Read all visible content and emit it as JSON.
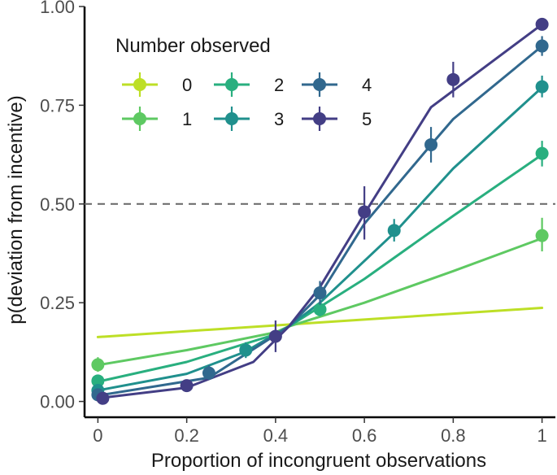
{
  "chart_data": {
    "type": "line",
    "title": "",
    "xlabel": "Proportion of incongruent observations",
    "ylabel": "p(deviation from incentive)",
    "xlim": [
      -0.03,
      1.03
    ],
    "ylim": [
      -0.04,
      1.0
    ],
    "x_ticks": [
      0,
      0.2,
      0.4,
      0.6,
      0.8,
      1
    ],
    "x_tick_labels": [
      "0",
      "0.2",
      "0.4",
      "0.6",
      "0.8",
      "1"
    ],
    "y_ticks": [
      0,
      0.25,
      0.5,
      0.75,
      1.0
    ],
    "y_tick_labels": [
      "0.00",
      "0.25",
      "0.50",
      "0.75",
      "1.00"
    ],
    "reference_line": {
      "y": 0.5,
      "style": "dashed",
      "color": "#666666"
    },
    "grid": false,
    "legend": {
      "title": "Number observed",
      "placement": "top-left",
      "columns": 3
    },
    "series": [
      {
        "name": "0",
        "color": "#bddf26",
        "curve": {
          "x": [
            0,
            1
          ],
          "y": [
            0.163,
            0.237
          ]
        },
        "points": []
      },
      {
        "name": "1",
        "color": "#5ec962",
        "curve": {
          "x": [
            0,
            0.2,
            0.4,
            0.43,
            0.6,
            0.8,
            1
          ],
          "y": [
            0.092,
            0.13,
            0.175,
            0.19,
            0.25,
            0.33,
            0.413
          ]
        },
        "points": [
          {
            "x": 0,
            "y": 0.093,
            "lo": 0.075,
            "hi": 0.112
          },
          {
            "x": 1,
            "y": 0.42,
            "lo": 0.38,
            "hi": 0.465
          }
        ]
      },
      {
        "name": "2",
        "color": "#29af7f",
        "curve": {
          "x": [
            0,
            0.2,
            0.4,
            0.43,
            0.6,
            0.8,
            1
          ],
          "y": [
            0.05,
            0.1,
            0.17,
            0.19,
            0.31,
            0.47,
            0.625
          ]
        },
        "points": [
          {
            "x": 0,
            "y": 0.052,
            "lo": 0.038,
            "hi": 0.068
          },
          {
            "x": 0.5,
            "y": 0.233,
            "lo": 0.215,
            "hi": 0.252
          },
          {
            "x": 1,
            "y": 0.628,
            "lo": 0.595,
            "hi": 0.66
          }
        ]
      },
      {
        "name": "3",
        "color": "#20908d",
        "curve": {
          "x": [
            0,
            0.2,
            0.33,
            0.43,
            0.5,
            0.67,
            0.8,
            1
          ],
          "y": [
            0.028,
            0.07,
            0.125,
            0.19,
            0.25,
            0.43,
            0.59,
            0.795
          ]
        },
        "points": [
          {
            "x": 0,
            "y": 0.028,
            "lo": 0.018,
            "hi": 0.04
          },
          {
            "x": 0.333,
            "y": 0.13,
            "lo": 0.11,
            "hi": 0.15
          },
          {
            "x": 0.667,
            "y": 0.433,
            "lo": 0.405,
            "hi": 0.462
          },
          {
            "x": 1,
            "y": 0.797,
            "lo": 0.77,
            "hi": 0.825
          }
        ]
      },
      {
        "name": "4",
        "color": "#31688e",
        "curve": {
          "x": [
            0,
            0.25,
            0.43,
            0.5,
            0.6,
            0.75,
            0.8,
            1
          ],
          "y": [
            0.015,
            0.06,
            0.19,
            0.27,
            0.45,
            0.65,
            0.715,
            0.9
          ]
        },
        "points": [
          {
            "x": 0,
            "y": 0.017,
            "lo": 0.01,
            "hi": 0.026
          },
          {
            "x": 0.25,
            "y": 0.072,
            "lo": 0.055,
            "hi": 0.092
          },
          {
            "x": 0.5,
            "y": 0.275,
            "lo": 0.245,
            "hi": 0.305
          },
          {
            "x": 0.75,
            "y": 0.65,
            "lo": 0.605,
            "hi": 0.695
          },
          {
            "x": 1,
            "y": 0.9,
            "lo": 0.875,
            "hi": 0.925
          }
        ]
      },
      {
        "name": "5",
        "color": "#433e85",
        "curve": {
          "x": [
            0,
            0.2,
            0.35,
            0.43,
            0.5,
            0.6,
            0.75,
            1
          ],
          "y": [
            0.008,
            0.035,
            0.1,
            0.19,
            0.29,
            0.475,
            0.745,
            0.955
          ]
        },
        "points": [
          {
            "x": 0.011,
            "y": 0.008,
            "lo": 0.003,
            "hi": 0.015
          },
          {
            "x": 0.2,
            "y": 0.04,
            "lo": 0.03,
            "hi": 0.05
          },
          {
            "x": 0.4,
            "y": 0.165,
            "lo": 0.125,
            "hi": 0.205
          },
          {
            "x": 0.6,
            "y": 0.48,
            "lo": 0.41,
            "hi": 0.545
          },
          {
            "x": 0.8,
            "y": 0.815,
            "lo": 0.77,
            "hi": 0.86
          },
          {
            "x": 1,
            "y": 0.955,
            "lo": 0.945,
            "hi": 0.965
          }
        ]
      }
    ]
  }
}
